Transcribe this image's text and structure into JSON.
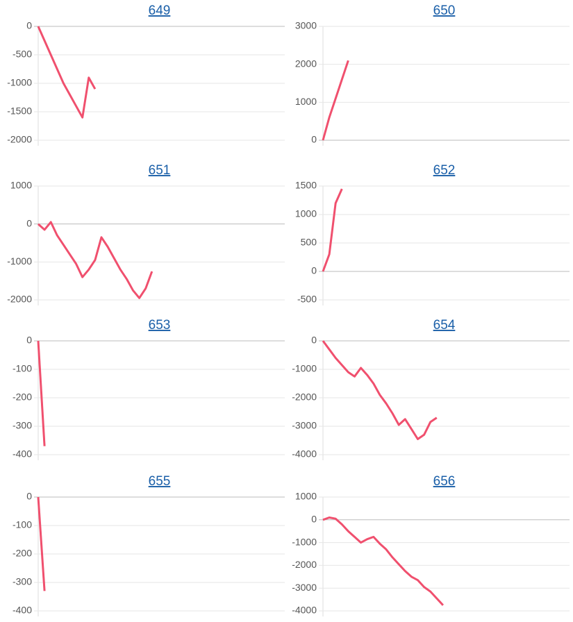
{
  "chart_data": [
    {
      "type": "line",
      "title": "649",
      "color": "#f0506e",
      "grid": true,
      "ylim": [
        -2000,
        0
      ],
      "yticks": [
        0,
        -500,
        -1000,
        -1500,
        -2000
      ],
      "values": [
        0,
        -250,
        -500,
        -750,
        -1000,
        -1200,
        -1400,
        -1600,
        -900,
        -1100,
        null,
        null,
        null,
        null,
        null,
        null,
        null,
        null,
        null,
        null,
        null,
        null,
        null,
        null,
        null,
        null,
        null,
        null,
        null,
        null,
        null,
        null,
        null,
        null,
        null,
        null,
        null,
        null,
        null,
        null
      ]
    },
    {
      "type": "line",
      "title": "650",
      "color": "#f0506e",
      "grid": true,
      "ylim": [
        0,
        3000
      ],
      "yticks": [
        3000,
        2000,
        1000,
        0
      ],
      "values": [
        0,
        600,
        1100,
        1600,
        2100,
        null,
        null,
        null,
        null,
        null,
        null,
        null,
        null,
        null,
        null,
        null,
        null,
        null,
        null,
        null,
        null,
        null,
        null,
        null,
        null,
        null,
        null,
        null,
        null,
        null,
        null,
        null,
        null,
        null,
        null,
        null,
        null,
        null,
        null,
        null
      ]
    },
    {
      "type": "line",
      "title": "651",
      "color": "#f0506e",
      "grid": true,
      "ylim": [
        -2000,
        1000
      ],
      "yticks": [
        1000,
        0,
        -1000,
        -2000
      ],
      "values": [
        0,
        -150,
        50,
        -300,
        -550,
        -800,
        -1050,
        -1400,
        -1200,
        -950,
        -350,
        -600,
        -900,
        -1200,
        -1450,
        -1750,
        -1950,
        -1700,
        -1250,
        null,
        null,
        null,
        null,
        null,
        null,
        null,
        null,
        null,
        null,
        null,
        null,
        null,
        null,
        null,
        null,
        null,
        null,
        null,
        null,
        null
      ]
    },
    {
      "type": "line",
      "title": "652",
      "color": "#f0506e",
      "grid": true,
      "ylim": [
        -500,
        1500
      ],
      "yticks": [
        1500,
        1000,
        500,
        0,
        -500
      ],
      "values": [
        0,
        300,
        1200,
        1450,
        null,
        null,
        null,
        null,
        null,
        null,
        null,
        null,
        null,
        null,
        null,
        null,
        null,
        null,
        null,
        null,
        null,
        null,
        null,
        null,
        null,
        null,
        null,
        null,
        null,
        null,
        null,
        null,
        null,
        null,
        null,
        null,
        null,
        null,
        null,
        null
      ]
    },
    {
      "type": "line",
      "title": "653",
      "color": "#f0506e",
      "grid": true,
      "ylim": [
        -400,
        0
      ],
      "yticks": [
        0,
        -100,
        -200,
        -300,
        -400
      ],
      "values": [
        0,
        -370,
        null,
        null,
        null,
        null,
        null,
        null,
        null,
        null,
        null,
        null,
        null,
        null,
        null,
        null,
        null,
        null,
        null,
        null,
        null,
        null,
        null,
        null,
        null,
        null,
        null,
        null,
        null,
        null,
        null,
        null,
        null,
        null,
        null,
        null,
        null,
        null,
        null,
        null
      ]
    },
    {
      "type": "line",
      "title": "654",
      "color": "#f0506e",
      "grid": true,
      "ylim": [
        -4000,
        0
      ],
      "yticks": [
        0,
        -1000,
        -2000,
        -3000,
        -4000
      ],
      "values": [
        0,
        -300,
        -600,
        -850,
        -1100,
        -1250,
        -950,
        -1200,
        -1500,
        -1900,
        -2200,
        -2550,
        -2950,
        -2750,
        -3100,
        -3450,
        -3300,
        -2850,
        -2700,
        null,
        null,
        null,
        null,
        null,
        null,
        null,
        null,
        null,
        null,
        null,
        null,
        null,
        null,
        null,
        null,
        null,
        null,
        null,
        null,
        null
      ]
    },
    {
      "type": "line",
      "title": "655",
      "color": "#f0506e",
      "grid": true,
      "ylim": [
        -400,
        0
      ],
      "yticks": [
        0,
        -100,
        -200,
        -300,
        -400
      ],
      "values": [
        0,
        -330,
        null,
        null,
        null,
        null,
        null,
        null,
        null,
        null,
        null,
        null,
        null,
        null,
        null,
        null,
        null,
        null,
        null,
        null,
        null,
        null,
        null,
        null,
        null,
        null,
        null,
        null,
        null,
        null,
        null,
        null,
        null,
        null,
        null,
        null,
        null,
        null,
        null,
        null
      ]
    },
    {
      "type": "line",
      "title": "656",
      "color": "#f0506e",
      "grid": true,
      "ylim": [
        -4000,
        1000
      ],
      "yticks": [
        1000,
        0,
        -1000,
        -2000,
        -3000,
        -4000
      ],
      "values": [
        0,
        100,
        50,
        -200,
        -500,
        -750,
        -1000,
        -850,
        -750,
        -1050,
        -1300,
        -1650,
        -1950,
        -2250,
        -2500,
        -2650,
        -2950,
        -3150,
        -3450,
        -3750,
        null,
        null,
        null,
        null,
        null,
        null,
        null,
        null,
        null,
        null,
        null,
        null,
        null,
        null,
        null,
        null,
        null,
        null,
        null,
        null
      ]
    }
  ]
}
